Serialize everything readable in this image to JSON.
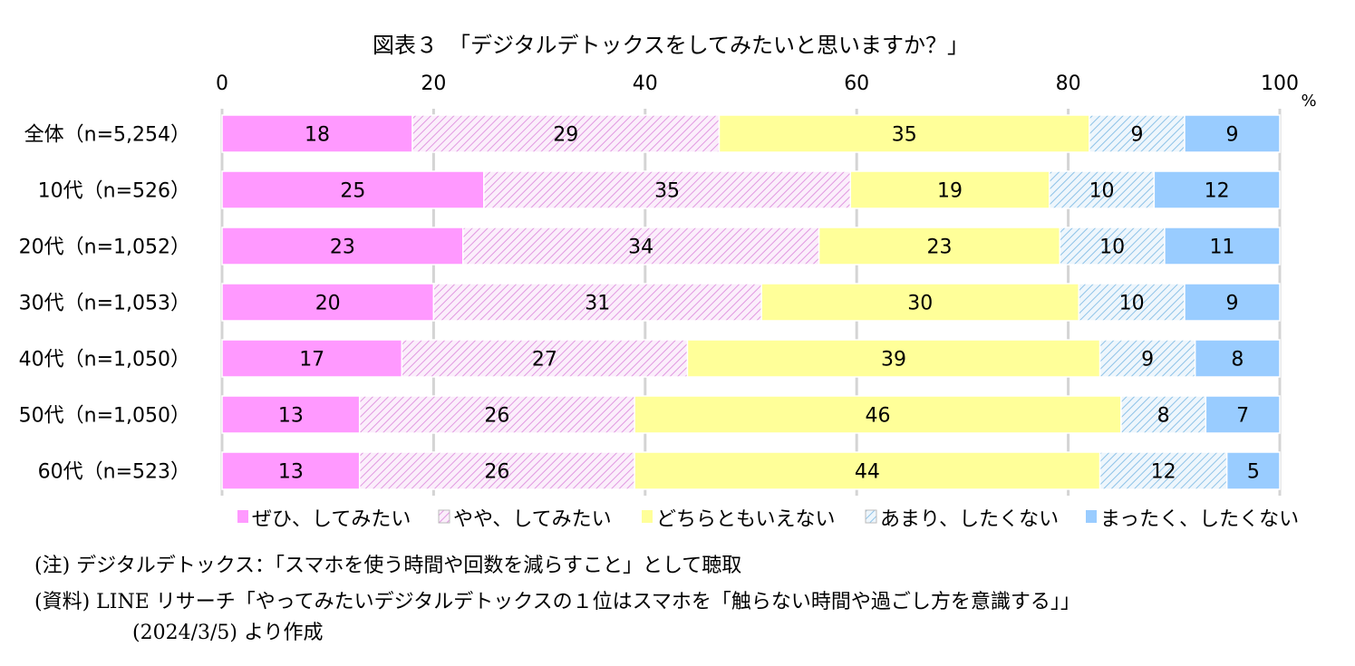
{
  "chart_data": {
    "type": "bar",
    "orientation": "horizontal",
    "stacked": true,
    "title": "図表３　「デジタルデトックスをしてみたいと思いますか？」",
    "unit": "%",
    "xlim": [
      0,
      100
    ],
    "ticks": [
      "0",
      "20",
      "40",
      "60",
      "80",
      "100"
    ],
    "grid": true,
    "legend_position": "bottom",
    "categories": [
      "全体（n=5,254）",
      "10代（n=526）",
      "20代（n=1,052）",
      "30代（n=1,053）",
      "40代（n=1,050）",
      "50代（n=1,050）",
      "60代（n=523）"
    ],
    "series": [
      {
        "name": "ぜひ、してみたい",
        "values": [
          18,
          25,
          23,
          20,
          17,
          13,
          13
        ],
        "color": "#ff99ff",
        "pattern": "solid"
      },
      {
        "name": "やや、してみたい",
        "values": [
          29,
          35,
          34,
          31,
          27,
          26,
          26
        ],
        "color": "#e8a8e8",
        "pattern": "hatch"
      },
      {
        "name": "どちらともいえない",
        "values": [
          35,
          19,
          23,
          30,
          39,
          46,
          44
        ],
        "color": "#ffff99",
        "pattern": "solid"
      },
      {
        "name": "あまり、したくない",
        "values": [
          9,
          10,
          10,
          10,
          9,
          8,
          12
        ],
        "color": "#99ccee",
        "pattern": "hatch"
      },
      {
        "name": "まったく、したくない",
        "values": [
          9,
          12,
          11,
          9,
          8,
          7,
          5
        ],
        "color": "#99ccff",
        "pattern": "solid"
      }
    ]
  },
  "notes": {
    "note1": "(注) デジタルデトックス：「スマホを使う時間や回数を減らすこと」として聴取",
    "note2": "(資料) LINE リサーチ「やってみたいデジタルデトックスの１位はスマホを「触らない時間や過ごし方を意識する」」",
    "note3": "(2024/3/5) より作成"
  }
}
